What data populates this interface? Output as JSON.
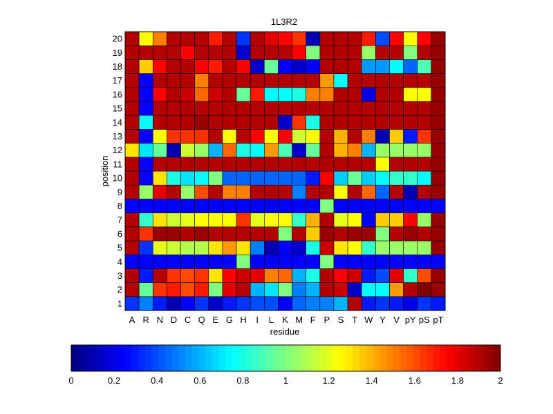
{
  "chart_data": {
    "type": "heatmap",
    "title": "1L3R2",
    "xlabel": "residue",
    "ylabel": "position",
    "x_categories": [
      "A",
      "R",
      "N",
      "D",
      "C",
      "Q",
      "E",
      "G",
      "H",
      "I",
      "L",
      "K",
      "M",
      "F",
      "P",
      "S",
      "T",
      "W",
      "Y",
      "V",
      "pY",
      "pS",
      "pT"
    ],
    "y_categories": [
      "1",
      "2",
      "3",
      "4",
      "5",
      "6",
      "7",
      "8",
      "9",
      "10",
      "11",
      "12",
      "13",
      "14",
      "15",
      "16",
      "17",
      "18",
      "19",
      "20"
    ],
    "y_ticks_shown": [
      "1",
      "2",
      "3",
      "4",
      "5",
      "6",
      "7",
      "8",
      "9",
      "10",
      "11",
      "12",
      "13",
      "14",
      "15",
      "16",
      "17",
      "18",
      "19",
      "20"
    ],
    "colormap": "jet",
    "clim": [
      0,
      2
    ],
    "colorbar_ticks": [
      "0",
      "0.2",
      "0.4",
      "0.6",
      "0.8",
      "1",
      "1.2",
      "1.4",
      "1.6",
      "1.8",
      "2"
    ],
    "values": [
      [
        0.35,
        0.5,
        0.3,
        0.1,
        0.25,
        0.35,
        0.15,
        0.3,
        0.35,
        0.4,
        0.4,
        0.25,
        0.45,
        0.5,
        0.5,
        0.6,
        1.9,
        0.3,
        0.35,
        0.3,
        0.2,
        0.35,
        0.3
      ],
      [
        1.9,
        0.95,
        1.65,
        1.7,
        1.6,
        1.7,
        1.0,
        1.8,
        1.9,
        0.6,
        0.7,
        1.0,
        0.5,
        0.6,
        1.9,
        1.85,
        0.15,
        0.75,
        0.75,
        1.45,
        1.9,
        2.0,
        1.95
      ],
      [
        1.9,
        0.3,
        1.9,
        1.65,
        1.6,
        1.65,
        1.3,
        1.75,
        1.85,
        1.8,
        1.5,
        1.55,
        0.6,
        0.8,
        1.9,
        1.75,
        1.85,
        0.3,
        0.4,
        1.8,
        0.85,
        1.6,
        1.95
      ],
      [
        0.25,
        0.25,
        0.25,
        0.25,
        0.25,
        0.25,
        0.25,
        0.25,
        1.0,
        0.25,
        0.25,
        0.25,
        0.25,
        0.25,
        1.0,
        0.25,
        0.25,
        0.25,
        0.25,
        0.25,
        0.25,
        0.25,
        0.25
      ],
      [
        1.9,
        0.35,
        1.2,
        1.15,
        1.1,
        1.1,
        1.3,
        1.45,
        1.3,
        0.5,
        0.1,
        0.25,
        0.15,
        0.8,
        1.85,
        1.3,
        1.25,
        0.85,
        1.05,
        1.05,
        1.05,
        1.05,
        1.95
      ],
      [
        1.9,
        1.65,
        1.95,
        1.95,
        1.9,
        1.95,
        1.9,
        1.9,
        1.9,
        1.9,
        1.9,
        1.0,
        1.9,
        1.35,
        1.95,
        1.9,
        1.95,
        1.95,
        1.0,
        1.9,
        1.95,
        1.9,
        1.95
      ],
      [
        1.9,
        0.85,
        1.3,
        1.15,
        1.2,
        1.25,
        1.25,
        1.25,
        1.65,
        1.2,
        1.25,
        1.25,
        0.85,
        1.4,
        1.9,
        1.2,
        1.25,
        0.25,
        1.35,
        1.35,
        1.75,
        1.05,
        1.95
      ],
      [
        0.25,
        0.25,
        0.25,
        0.25,
        0.25,
        0.25,
        0.25,
        0.25,
        0.25,
        0.25,
        0.25,
        0.25,
        0.25,
        0.25,
        1.0,
        0.25,
        0.25,
        0.25,
        0.25,
        0.25,
        0.25,
        0.25,
        0.25
      ],
      [
        1.9,
        1.05,
        1.8,
        1.9,
        1.05,
        1.6,
        1.9,
        1.5,
        1.5,
        1.9,
        1.9,
        1.9,
        0.5,
        1.9,
        1.9,
        1.25,
        1.9,
        1.55,
        0.45,
        1.9,
        0.1,
        1.9,
        1.95
      ],
      [
        1.9,
        0.25,
        1.3,
        0.8,
        0.7,
        0.75,
        1.0,
        0.45,
        0.45,
        0.45,
        0.45,
        0.45,
        0.45,
        0.3,
        1.75,
        0.65,
        0.95,
        0.65,
        0.75,
        0.85,
        0.85,
        0.75,
        1.95
      ],
      [
        1.9,
        0.25,
        1.9,
        1.9,
        1.9,
        1.9,
        1.9,
        1.9,
        1.9,
        1.9,
        1.9,
        1.9,
        1.9,
        1.9,
        1.9,
        1.9,
        1.9,
        1.9,
        1.25,
        1.9,
        1.9,
        1.9,
        1.95
      ],
      [
        1.3,
        0.7,
        0.95,
        0.1,
        1.15,
        1.05,
        0.6,
        1.55,
        0.8,
        0.75,
        1.45,
        0.9,
        0.15,
        0.95,
        1.9,
        1.4,
        1.5,
        0.6,
        1.05,
        1.05,
        1.05,
        1.05,
        1.95
      ],
      [
        1.9,
        0.25,
        1.25,
        1.65,
        1.65,
        1.65,
        1.9,
        1.25,
        1.9,
        1.75,
        1.25,
        1.75,
        1.15,
        1.25,
        1.9,
        1.4,
        1.9,
        1.5,
        0.1,
        1.35,
        0.3,
        1.65,
        1.95
      ],
      [
        1.9,
        0.75,
        1.9,
        1.9,
        1.9,
        1.95,
        1.9,
        1.9,
        1.9,
        1.9,
        1.9,
        0.15,
        1.65,
        0.8,
        1.9,
        1.9,
        1.9,
        1.9,
        1.9,
        1.9,
        1.9,
        1.9,
        1.95
      ],
      [
        1.9,
        0.25,
        1.9,
        1.9,
        1.9,
        1.9,
        1.9,
        1.9,
        1.9,
        1.9,
        1.9,
        1.9,
        1.9,
        1.9,
        1.9,
        1.9,
        1.9,
        1.9,
        1.9,
        1.9,
        1.9,
        1.9,
        1.95
      ],
      [
        1.9,
        0.25,
        1.75,
        1.9,
        1.85,
        1.55,
        1.85,
        1.9,
        0.95,
        1.7,
        0.75,
        0.75,
        0.8,
        1.5,
        1.5,
        1.9,
        1.9,
        0.2,
        1.9,
        1.9,
        1.25,
        1.25,
        1.95
      ],
      [
        1.9,
        0.25,
        1.9,
        1.9,
        1.9,
        1.5,
        1.9,
        1.9,
        1.9,
        1.9,
        1.9,
        1.9,
        1.9,
        1.9,
        1.45,
        0.75,
        1.9,
        1.9,
        1.9,
        1.9,
        1.9,
        1.9,
        1.95
      ],
      [
        1.9,
        1.35,
        1.75,
        1.9,
        1.9,
        1.75,
        1.7,
        1.9,
        1.75,
        0.15,
        0.95,
        0.25,
        0.15,
        0.25,
        1.9,
        1.9,
        1.9,
        0.55,
        0.55,
        0.75,
        0.45,
        0.9,
        1.95
      ],
      [
        1.9,
        1.9,
        1.9,
        1.9,
        1.75,
        1.9,
        1.9,
        1.9,
        0.15,
        1.9,
        1.9,
        1.9,
        1.75,
        1.0,
        1.9,
        1.9,
        1.9,
        1.05,
        1.9,
        1.9,
        1.0,
        1.9,
        1.95
      ],
      [
        1.9,
        1.25,
        1.5,
        1.9,
        1.9,
        1.9,
        1.7,
        1.9,
        0.35,
        1.9,
        1.8,
        1.75,
        1.65,
        0.1,
        1.9,
        1.9,
        1.9,
        1.7,
        0.4,
        1.75,
        1.25,
        1.75,
        1.95
      ]
    ]
  }
}
